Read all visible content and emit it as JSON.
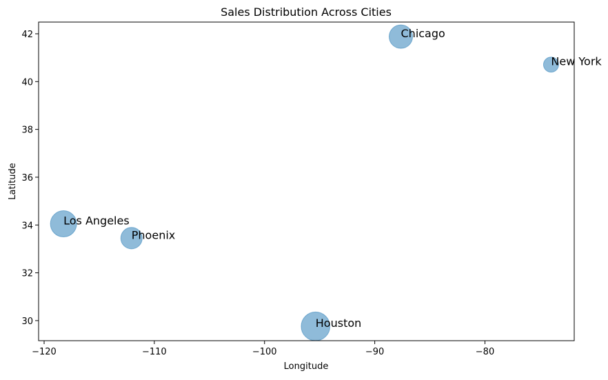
{
  "chart_data": {
    "type": "scatter",
    "title": "Sales Distribution Across Cities",
    "xlabel": "Longitude",
    "ylabel": "Latitude",
    "labels": [
      "New York",
      "Los Angeles",
      "Chicago",
      "Houston",
      "Phoenix"
    ],
    "x": [
      -74.0,
      -118.24,
      -87.63,
      -95.37,
      -112.07
    ],
    "values": [
      40.71,
      34.05,
      41.88,
      29.76,
      33.45
    ],
    "sizes": [
      250,
      750,
      600,
      900,
      500
    ],
    "color": "#1f77b4",
    "opacity": 0.5,
    "xlim": [
      -120.5,
      -71.9
    ],
    "ylim": [
      29.16,
      42.49
    ],
    "xticks": [
      {
        "value": -120,
        "label": "−120"
      },
      {
        "value": -110,
        "label": "−110"
      },
      {
        "value": -100,
        "label": "−100"
      },
      {
        "value": -90,
        "label": "−90"
      },
      {
        "value": -80,
        "label": "−80"
      }
    ],
    "yticks": [
      30,
      32,
      34,
      36,
      38,
      40,
      42
    ],
    "grid": false
  }
}
